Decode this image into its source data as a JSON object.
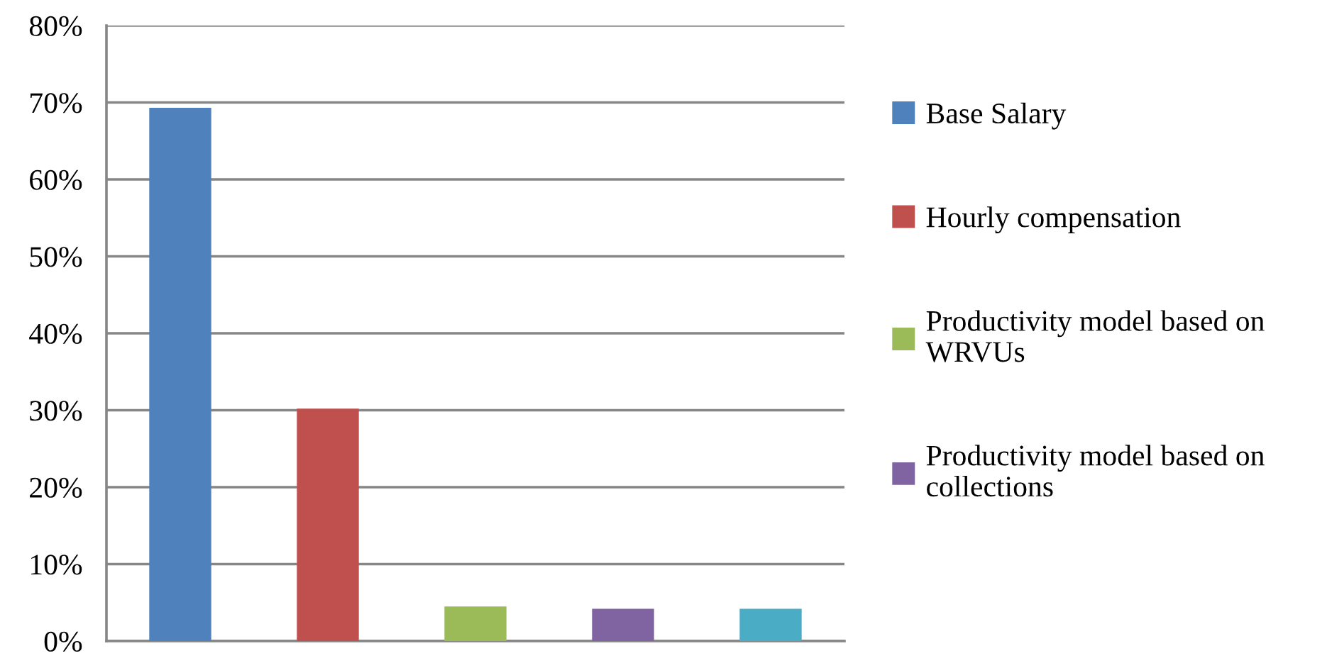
{
  "chart_data": {
    "type": "bar",
    "categories": [
      null,
      null,
      null,
      null,
      null
    ],
    "series": [
      {
        "name": "Base Salary",
        "color": "#4f81bd",
        "values": [
          69.3,
          null,
          null,
          null,
          null
        ]
      },
      {
        "name": "Hourly compensation",
        "color": "#c0504d",
        "values": [
          null,
          30.2,
          null,
          null,
          null
        ]
      },
      {
        "name": "Productivity model based on\nWRVUs",
        "color": "#9bbb59",
        "values": [
          null,
          null,
          4.5,
          null,
          null
        ]
      },
      {
        "name": "Productivity model based on\ncollections",
        "color": "#8064a2",
        "values": [
          null,
          null,
          null,
          4.2,
          null
        ]
      },
      {
        "color": "#4bacc6",
        "values": [
          null,
          null,
          null,
          null,
          4.2
        ]
      }
    ],
    "ylim": [
      0,
      80
    ],
    "yticks": [
      {
        "value": 0,
        "label": "0%"
      },
      {
        "value": 10,
        "label": "10%"
      },
      {
        "value": 20,
        "label": "20%"
      },
      {
        "value": 30,
        "label": "30%"
      },
      {
        "value": 40,
        "label": "40%"
      },
      {
        "value": 50,
        "label": "50%"
      },
      {
        "value": 60,
        "label": "60%"
      },
      {
        "value": 70,
        "label": "70%"
      },
      {
        "value": 80,
        "label": "80%"
      }
    ],
    "grid": "y",
    "legend": "right"
  }
}
